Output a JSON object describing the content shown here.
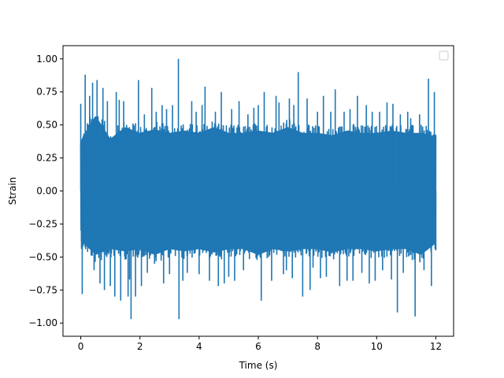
{
  "chart_data": {
    "type": "line",
    "title": "",
    "xlabel": "Time (s)",
    "ylabel": "Strain",
    "xlim": [
      -0.6,
      12.6
    ],
    "ylim": [
      -1.1,
      1.1
    ],
    "xticks": [
      0,
      2,
      4,
      6,
      8,
      10,
      12
    ],
    "xtick_labels": [
      "0",
      "2",
      "4",
      "6",
      "8",
      "10",
      "12"
    ],
    "yticks": [
      -1.0,
      -0.75,
      -0.5,
      -0.25,
      0.0,
      0.25,
      0.5,
      0.75,
      1.0
    ],
    "ytick_labels": [
      "−1.00",
      "−0.75",
      "−0.50",
      "−0.25",
      "0.00",
      "0.25",
      "0.50",
      "0.75",
      "1.00"
    ],
    "grid": false,
    "legend": {
      "placement": "top-right",
      "entries": []
    },
    "series_color": "#1f77b4",
    "series": [
      {
        "x_range": [
          0,
          12
        ],
        "band_upper": [
          0.43,
          0.65,
          0.45,
          0.55,
          0.5,
          0.53,
          0.5,
          0.52,
          0.5,
          0.55,
          0.5,
          0.5,
          0.52,
          0.5,
          0.55,
          0.5,
          0.5,
          0.48,
          0.52,
          0.5,
          0.5,
          0.52,
          0.5,
          0.5,
          0.47
        ],
        "band_lower": [
          -0.43,
          -0.55,
          -0.5,
          -0.52,
          -0.5,
          -0.55,
          -0.5,
          -0.52,
          -0.5,
          -0.53,
          -0.5,
          -0.5,
          -0.55,
          -0.5,
          -0.52,
          -0.5,
          -0.5,
          -0.53,
          -0.5,
          -0.5,
          -0.52,
          -0.5,
          -0.5,
          -0.55,
          -0.45
        ],
        "peaks": [
          [
            0.0,
            0.66
          ],
          [
            0.05,
            -0.78
          ],
          [
            0.15,
            0.88
          ],
          [
            0.3,
            0.72
          ],
          [
            0.4,
            0.82
          ],
          [
            0.45,
            -0.6
          ],
          [
            0.55,
            0.84
          ],
          [
            0.65,
            -0.7
          ],
          [
            0.75,
            0.78
          ],
          [
            0.8,
            -0.75
          ],
          [
            0.9,
            0.68
          ],
          [
            1.0,
            -0.72
          ],
          [
            1.15,
            -0.8
          ],
          [
            1.2,
            0.75
          ],
          [
            1.3,
            0.69
          ],
          [
            1.35,
            -0.83
          ],
          [
            1.45,
            0.68
          ],
          [
            1.55,
            0.5
          ],
          [
            1.6,
            -0.8
          ],
          [
            1.65,
            -0.67
          ],
          [
            1.7,
            -0.97
          ],
          [
            1.85,
            -0.8
          ],
          [
            1.95,
            0.84
          ],
          [
            2.05,
            -0.72
          ],
          [
            2.15,
            0.58
          ],
          [
            2.25,
            -0.62
          ],
          [
            2.4,
            0.78
          ],
          [
            2.55,
            0.6
          ],
          [
            2.75,
            0.65
          ],
          [
            2.8,
            -0.7
          ],
          [
            2.9,
            0.62
          ],
          [
            3.0,
            -0.63
          ],
          [
            3.1,
            0.65
          ],
          [
            3.3,
            1.0
          ],
          [
            3.32,
            -0.97
          ],
          [
            3.45,
            -0.68
          ],
          [
            3.6,
            -0.62
          ],
          [
            3.75,
            0.68
          ],
          [
            3.9,
            0.6
          ],
          [
            4.0,
            -0.63
          ],
          [
            4.1,
            0.65
          ],
          [
            4.2,
            0.79
          ],
          [
            4.35,
            -0.68
          ],
          [
            4.55,
            0.6
          ],
          [
            4.65,
            -0.72
          ],
          [
            4.75,
            0.75
          ],
          [
            4.85,
            -0.7
          ],
          [
            5.0,
            -0.65
          ],
          [
            5.1,
            0.62
          ],
          [
            5.2,
            -0.68
          ],
          [
            5.35,
            0.68
          ],
          [
            5.5,
            -0.6
          ],
          [
            5.65,
            0.58
          ],
          [
            5.85,
            0.63
          ],
          [
            6.0,
            0.65
          ],
          [
            6.1,
            -0.83
          ],
          [
            6.2,
            0.75
          ],
          [
            6.3,
            0.5
          ],
          [
            6.45,
            -0.68
          ],
          [
            6.6,
            0.72
          ],
          [
            6.7,
            0.67
          ],
          [
            6.85,
            -0.63
          ],
          [
            6.95,
            -0.6
          ],
          [
            7.05,
            0.7
          ],
          [
            7.15,
            -0.66
          ],
          [
            7.2,
            0.65
          ],
          [
            7.35,
            0.9
          ],
          [
            7.5,
            -0.8
          ],
          [
            7.65,
            0.7
          ],
          [
            7.75,
            -0.75
          ],
          [
            7.85,
            -0.58
          ],
          [
            8.0,
            0.6
          ],
          [
            8.1,
            -0.66
          ],
          [
            8.2,
            0.72
          ],
          [
            8.3,
            -0.65
          ],
          [
            8.45,
            0.6
          ],
          [
            8.6,
            0.77
          ],
          [
            8.75,
            -0.72
          ],
          [
            8.9,
            0.6
          ],
          [
            9.0,
            -0.68
          ],
          [
            9.1,
            0.62
          ],
          [
            9.2,
            -0.68
          ],
          [
            9.35,
            0.72
          ],
          [
            9.5,
            -0.62
          ],
          [
            9.65,
            0.65
          ],
          [
            9.75,
            -0.7
          ],
          [
            9.85,
            0.6
          ],
          [
            9.95,
            -0.68
          ],
          [
            10.1,
            0.6
          ],
          [
            10.2,
            -0.6
          ],
          [
            10.35,
            0.67
          ],
          [
            10.5,
            -0.67
          ],
          [
            10.55,
            0.66
          ],
          [
            10.7,
            -0.92
          ],
          [
            10.8,
            0.58
          ],
          [
            10.9,
            -0.62
          ],
          [
            11.05,
            0.6
          ],
          [
            11.15,
            0.55
          ],
          [
            11.3,
            -0.95
          ],
          [
            11.45,
            0.58
          ],
          [
            11.6,
            -0.6
          ],
          [
            11.75,
            0.85
          ],
          [
            11.85,
            -0.72
          ],
          [
            11.95,
            0.75
          ],
          [
            12.0,
            -0.45
          ]
        ]
      }
    ]
  }
}
